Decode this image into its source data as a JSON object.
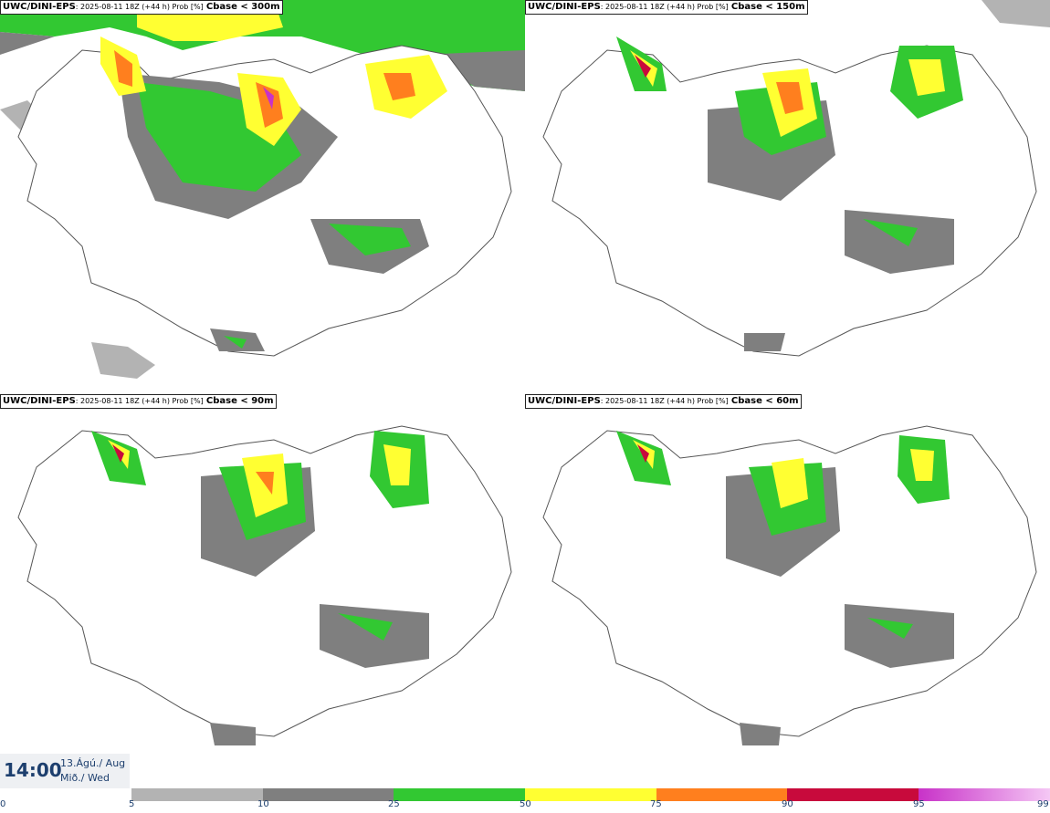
{
  "panels": [
    {
      "model": "UWC/DINI-EPS",
      "meta": ": 2025-08-11 18Z (+44 h) Prob [%]",
      "label": "Cbase < 300m"
    },
    {
      "model": "UWC/DINI-EPS",
      "meta": ": 2025-08-11 18Z (+44 h) Prob [%]",
      "label": "Cbase < 150m"
    },
    {
      "model": "UWC/DINI-EPS",
      "meta": ": 2025-08-11 18Z (+44 h) Prob [%]",
      "label": "Cbase < 90m"
    },
    {
      "model": "UWC/DINI-EPS",
      "meta": ": 2025-08-11 18Z (+44 h) Prob [%]",
      "label": "Cbase < 60m"
    }
  ],
  "valid": {
    "time": "14:00",
    "date_line1": "13.Ágú./ Aug",
    "date_line2": "Mið./ Wed"
  },
  "colorbar": {
    "ticks": [
      "0",
      "5",
      "10",
      "25",
      "50",
      "75",
      "90",
      "95",
      "99"
    ],
    "colors": [
      "#ffffff",
      "#b3b3b3",
      "#7f7f7f",
      "#32c832",
      "#ffff32",
      "#ff7f1e",
      "#c80a3c",
      "#c832c8",
      "#f5c8f5"
    ]
  }
}
